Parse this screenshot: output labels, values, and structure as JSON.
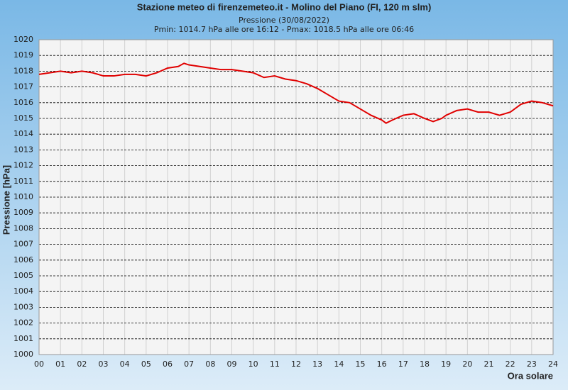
{
  "chart_data": {
    "type": "line",
    "title": "Stazione meteo di firenzemeteo.it - Molino del Piano (FI, 120 m slm)",
    "subtitle": "Pressione (30/08/2022)",
    "annotation": "Pmin: 1014.7 hPa alle ore 16:12 - Pmax: 1018.5 hPa alle ore 06:46",
    "y_label": "Pressione [hPa]",
    "x_label": "Ora solare",
    "x": [
      0,
      0.5,
      1,
      1.5,
      2,
      2.5,
      3,
      3.5,
      4,
      4.5,
      5,
      5.5,
      6,
      6.5,
      6.77,
      7,
      7.5,
      8,
      8.5,
      9,
      9.5,
      10,
      10.5,
      11,
      11.5,
      12,
      12.5,
      13,
      13.5,
      14,
      14.5,
      15,
      15.5,
      16,
      16.2,
      16.5,
      17,
      17.5,
      18,
      18.4,
      18.8,
      19,
      19.5,
      20,
      20.5,
      21,
      21.5,
      22,
      22.5,
      23,
      23.5,
      24
    ],
    "series": [
      {
        "color": "#e00000",
        "values": [
          1017.8,
          1017.9,
          1018.0,
          1017.9,
          1018.0,
          1017.9,
          1017.7,
          1017.7,
          1017.8,
          1017.8,
          1017.7,
          1017.9,
          1018.2,
          1018.3,
          1018.5,
          1018.4,
          1018.3,
          1018.2,
          1018.1,
          1018.1,
          1018.0,
          1017.9,
          1017.6,
          1017.7,
          1017.5,
          1017.4,
          1017.2,
          1016.9,
          1016.5,
          1016.1,
          1016.0,
          1015.6,
          1015.2,
          1014.9,
          1014.7,
          1014.9,
          1015.2,
          1015.3,
          1015.0,
          1014.8,
          1015.0,
          1015.2,
          1015.5,
          1015.6,
          1015.4,
          1015.4,
          1015.2,
          1015.4,
          1015.9,
          1016.1,
          1016.0,
          1015.8
        ]
      }
    ],
    "xlim": [
      0,
      24
    ],
    "xticks": [
      {
        "value": 0,
        "label": "00"
      },
      {
        "value": 1,
        "label": "01"
      },
      {
        "value": 2,
        "label": "02"
      },
      {
        "value": 3,
        "label": "03"
      },
      {
        "value": 4,
        "label": "04"
      },
      {
        "value": 5,
        "label": "05"
      },
      {
        "value": 6,
        "label": "06"
      },
      {
        "value": 7,
        "label": "07"
      },
      {
        "value": 8,
        "label": "08"
      },
      {
        "value": 9,
        "label": "09"
      },
      10,
      11,
      12,
      13,
      14,
      15,
      16,
      17,
      18,
      19,
      20,
      21,
      22,
      23,
      24
    ],
    "ylim": [
      1000,
      1020
    ],
    "yticks": [
      1000,
      1001,
      1002,
      1003,
      1004,
      1005,
      1006,
      1007,
      1008,
      1009,
      1010,
      1011,
      1012,
      1013,
      1014,
      1015,
      1016,
      1017,
      1018,
      1019,
      1020
    ],
    "grid": true
  }
}
